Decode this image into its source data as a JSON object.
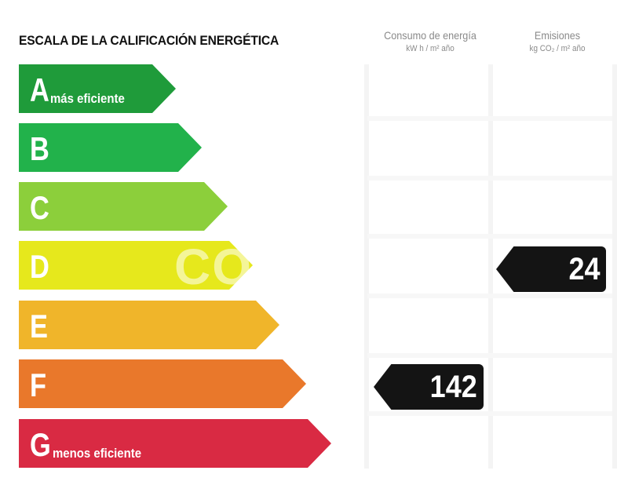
{
  "label": {
    "title": "ESCALA DE LA CALIFICACIÓN ENERGÉTICA",
    "columns": {
      "consumo": {
        "title": "Consumo de energía",
        "unit": "kW h / m² año"
      },
      "emisiones": {
        "title": "Emisiones",
        "unit": "kg CO₂ / m² año"
      }
    },
    "classes": [
      {
        "letter": "A",
        "note": "más eficiente",
        "color": "#1f9b3a"
      },
      {
        "letter": "B",
        "note": "",
        "color": "#22b24b"
      },
      {
        "letter": "C",
        "note": "",
        "color": "#8ccf3b"
      },
      {
        "letter": "D",
        "note": "",
        "color": "#e6e81c"
      },
      {
        "letter": "E",
        "note": "",
        "color": "#f0b52a"
      },
      {
        "letter": "F",
        "note": "",
        "color": "#e9782b"
      },
      {
        "letter": "G",
        "note": "menos eficiente",
        "color": "#d92a43"
      }
    ],
    "consumo_rating": {
      "class": "F",
      "value": "142"
    },
    "emisiones_rating": {
      "class": "D",
      "value": "24"
    },
    "watermark": "CO"
  }
}
